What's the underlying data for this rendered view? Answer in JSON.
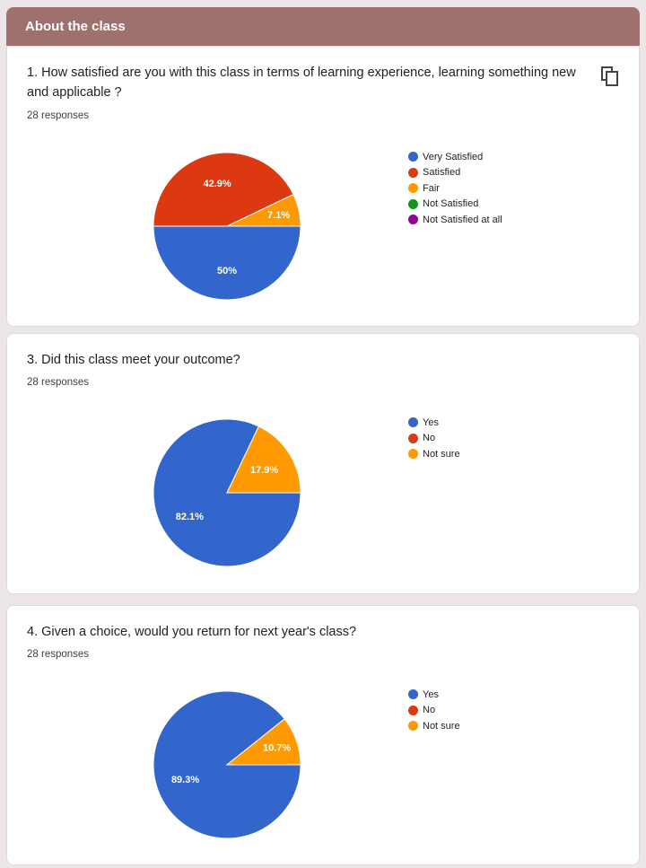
{
  "section": {
    "title": "About the class"
  },
  "questions": [
    {
      "title": "1. How satisfied are you with this class in terms of learning experience, learning something new and applicable ?",
      "responses": "28 responses",
      "legend": [
        "Very Satisfied",
        "Satisfied",
        "Fair",
        "Not Satisfied",
        "Not Satisfied at all"
      ],
      "slice_labels": [
        "50%",
        "42.9%",
        "7.1%"
      ]
    },
    {
      "title": "3. Did this class meet your outcome?",
      "responses": "28 responses",
      "legend": [
        "Yes",
        "No",
        "Not sure"
      ],
      "slice_labels": [
        "82.1%",
        "17.9%"
      ]
    },
    {
      "title": "4. Given a choice, would you return for next year's class?",
      "responses": "28 responses",
      "legend": [
        "Yes",
        "No",
        "Not sure"
      ],
      "slice_labels": [
        "89.3%",
        "10.7%"
      ]
    }
  ],
  "icons": {
    "copy": "copy-icon"
  },
  "chart_data": [
    {
      "type": "pie",
      "categories": [
        "Very Satisfied",
        "Satisfied",
        "Fair",
        "Not Satisfied",
        "Not Satisfied at all"
      ],
      "values": [
        50,
        42.9,
        7.1,
        0,
        0
      ],
      "colors": [
        "#3366cc",
        "#dc3912",
        "#ff9900",
        "#109618",
        "#990099"
      ],
      "legend_position": "right"
    },
    {
      "type": "pie",
      "categories": [
        "Yes",
        "No",
        "Not sure"
      ],
      "values": [
        82.1,
        0,
        17.9
      ],
      "colors": [
        "#3366cc",
        "#dc3912",
        "#ff9900"
      ],
      "legend_position": "right"
    },
    {
      "type": "pie",
      "categories": [
        "Yes",
        "No",
        "Not sure"
      ],
      "values": [
        89.3,
        0,
        10.7
      ],
      "colors": [
        "#3366cc",
        "#dc3912",
        "#ff9900"
      ],
      "legend_position": "right"
    }
  ]
}
